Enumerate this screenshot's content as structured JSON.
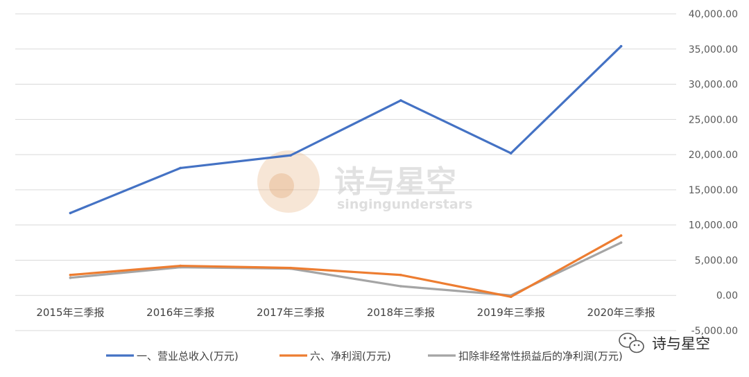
{
  "chart_data": {
    "type": "line",
    "categories": [
      "2015年三季报",
      "2016年三季报",
      "2017年三季报",
      "2018年三季报",
      "2019年三季报",
      "2020年三季报"
    ],
    "series": [
      {
        "name": "一、营业总收入(万元)",
        "color": "#4472C4",
        "values": [
          11700,
          18100,
          19900,
          27700,
          20200,
          35400
        ]
      },
      {
        "name": "六、净利润(万元)",
        "color": "#ED7D31",
        "values": [
          2900,
          4200,
          3900,
          2900,
          -200,
          8500
        ]
      },
      {
        "name": "扣除非经常性损益后的净利润(万元)",
        "color": "#A5A5A5",
        "values": [
          2500,
          4000,
          3800,
          1300,
          0,
          7500
        ]
      }
    ],
    "y_ticks": [
      "40,000.00",
      "35,000.00",
      "30,000.00",
      "25,000.00",
      "20,000.00",
      "15,000.00",
      "10,000.00",
      "5,000.00",
      "0.00",
      "-5,000.00"
    ],
    "ylim": [
      -5000,
      40000
    ],
    "y_axis_position": "right",
    "grid": true,
    "legend_position": "bottom"
  },
  "watermark": {
    "title": "诗与星空",
    "subtitle": "singingunderstars"
  },
  "brand": {
    "name": "诗与星空"
  }
}
